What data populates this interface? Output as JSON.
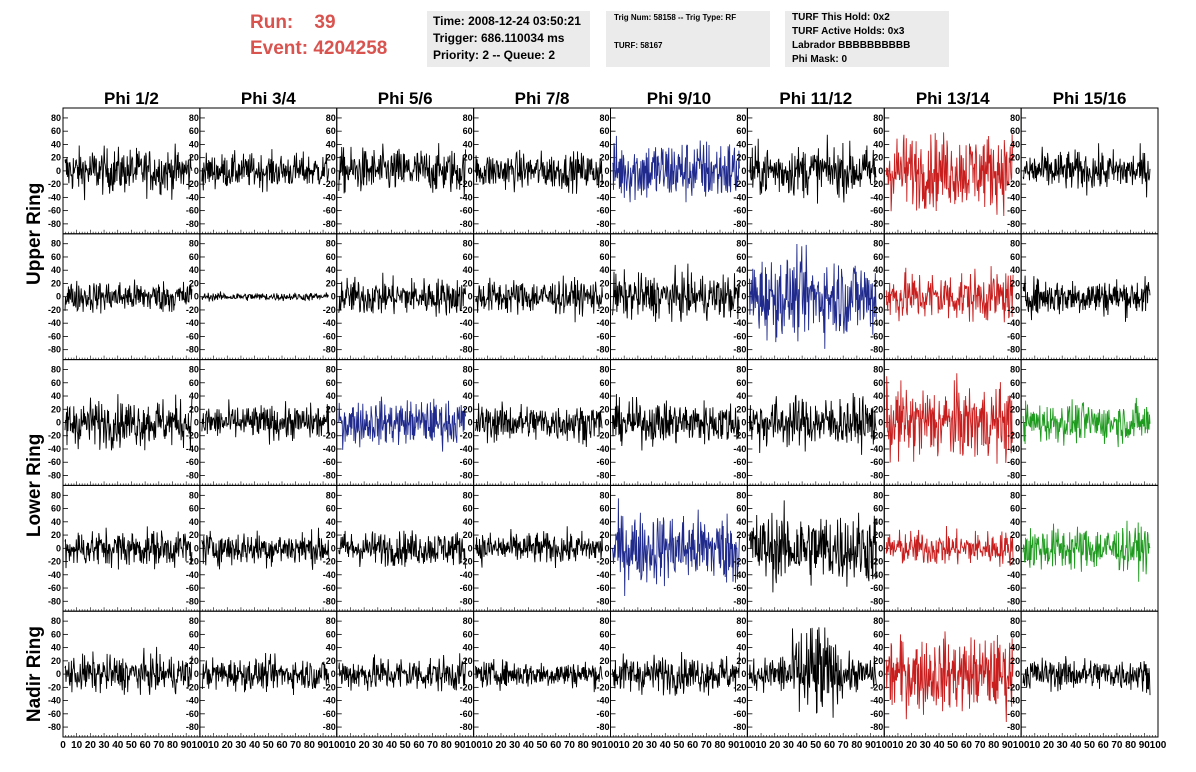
{
  "header": {
    "run_label": "Run:",
    "run_value": "39",
    "event_label": "Event:",
    "event_value": "4204258",
    "accent_color": "#d9534f",
    "box1": [
      "Time: 2008-12-24 03:50:21",
      "Trigger: 686.110034 ms",
      "Priority: 2 -- Queue: 2"
    ],
    "box2": [
      "Trig Num: 58158 -- Trig Type: RF",
      "TURF: 58167"
    ],
    "box3": [
      "TURF This Hold: 0x2",
      "TURF Active Holds: 0x3",
      "Labrador BBBBBBBBBB",
      "Phi Mask: 0"
    ]
  },
  "chart_data": {
    "type": "line",
    "columns": [
      "Phi 1/2",
      "Phi 3/4",
      "Phi 5/6",
      "Phi 7/8",
      "Phi 9/10",
      "Phi 11/12",
      "Phi 13/14",
      "Phi 15/16"
    ],
    "rows": [
      "Upper Ring",
      "Lower Ring",
      "Nadir Ring"
    ],
    "panel_rows": 5,
    "ylim": [
      -95,
      95
    ],
    "yticks": [
      "-80",
      "-60",
      "-40",
      "-20",
      "0",
      "20",
      "40",
      "60",
      "80"
    ],
    "xlim": [
      0,
      100
    ],
    "xticks": [
      "0",
      "10",
      "20",
      "30",
      "40",
      "50",
      "60",
      "70",
      "80",
      "90",
      "100"
    ],
    "colors": {
      "black": "#000000",
      "blue": "#1f2a8c",
      "red": "#c81e1e",
      "green": "#1e9a1e"
    },
    "panels": [
      [
        "black",
        "black",
        "black",
        "black",
        "blue",
        "black",
        "red",
        "black"
      ],
      [
        "black",
        "black",
        "black",
        "black",
        "black",
        "blue",
        "red",
        "black"
      ],
      [
        "black",
        "black",
        "blue",
        "black",
        "black",
        "black",
        "red",
        "green"
      ],
      [
        "black",
        "black",
        "black",
        "black",
        "blue",
        "black",
        "red",
        "green"
      ],
      [
        "black",
        "black",
        "black",
        "black",
        "black",
        "black",
        "red",
        "black"
      ]
    ],
    "amplitudes": [
      [
        17,
        13,
        17,
        14,
        24,
        19,
        28,
        15
      ],
      [
        12,
        3,
        14,
        13,
        17,
        30,
        19,
        14
      ],
      [
        18,
        13,
        17,
        14,
        16,
        19,
        28,
        15
      ],
      [
        14,
        13,
        13,
        12,
        27,
        27,
        13,
        17
      ],
      [
        14,
        12,
        13,
        10,
        14,
        34,
        28,
        12
      ]
    ]
  }
}
